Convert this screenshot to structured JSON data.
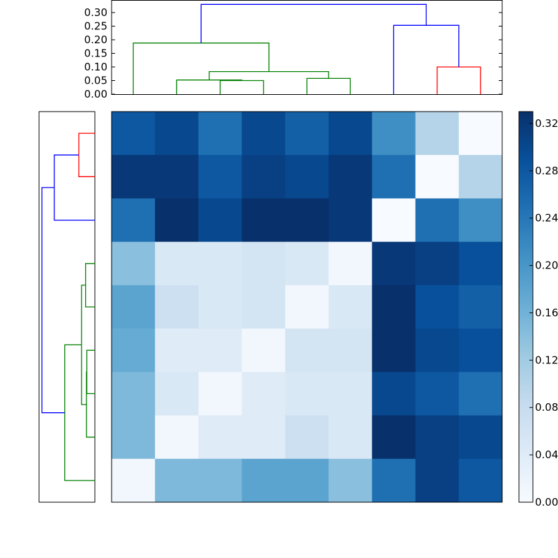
{
  "chart_data": [
    {
      "type": "dendrogram",
      "name": "top-dendrogram",
      "orientation": "top",
      "yticks": [
        "0.00",
        "0.05",
        "0.10",
        "0.15",
        "0.20",
        "0.25",
        "0.30"
      ],
      "ylim": [
        0,
        0.34
      ],
      "leaf_count": 9,
      "links": [
        {
          "color": "#008000",
          "x": [
            3,
            3,
            4,
            4
          ],
          "y": [
            0,
            0.05,
            0.05,
            0
          ]
        },
        {
          "color": "#008000",
          "x": [
            2,
            2,
            3.5,
            3.5
          ],
          "y": [
            0,
            0.052,
            0.052,
            0.05
          ]
        },
        {
          "color": "#008000",
          "x": [
            5,
            5,
            6,
            6
          ],
          "y": [
            0,
            0.058,
            0.058,
            0
          ]
        },
        {
          "color": "#008000",
          "x": [
            2.75,
            2.75,
            5.5,
            5.5
          ],
          "y": [
            0.052,
            0.083,
            0.083,
            0.058
          ]
        },
        {
          "color": "#008000",
          "x": [
            1,
            1,
            4.125,
            4.125
          ],
          "y": [
            0,
            0.188,
            0.188,
            0.083
          ]
        },
        {
          "color": "#ff0000",
          "x": [
            8,
            8,
            9,
            9
          ],
          "y": [
            0,
            0.1,
            0.1,
            0
          ]
        },
        {
          "color": "#0000ff",
          "x": [
            7,
            7,
            8.5,
            8.5
          ],
          "y": [
            0,
            0.253,
            0.253,
            0.1
          ]
        },
        {
          "color": "#0000ff",
          "x": [
            2.5625,
            2.5625,
            7.75,
            7.75
          ],
          "y": [
            0.188,
            0.33,
            0.33,
            0.253
          ]
        }
      ]
    },
    {
      "type": "dendrogram",
      "name": "left-dendrogram",
      "orientation": "left",
      "leaf_count": 9,
      "links": [
        {
          "color": "#ff0000",
          "y": [
            1,
            1,
            2,
            2
          ],
          "x": [
            0,
            0.1,
            0.1,
            0
          ]
        },
        {
          "color": "#0000ff",
          "y": [
            1.5,
            1.5,
            3,
            3
          ],
          "x": [
            0.1,
            0.253,
            0.253,
            0
          ]
        },
        {
          "color": "#008000",
          "y": [
            4,
            4,
            5,
            5
          ],
          "x": [
            0,
            0.058,
            0.058,
            0
          ]
        },
        {
          "color": "#008000",
          "y": [
            6,
            6,
            7,
            7
          ],
          "x": [
            0,
            0.05,
            0.05,
            0
          ]
        },
        {
          "color": "#008000",
          "y": [
            6.5,
            6.5,
            8,
            8
          ],
          "x": [
            0.05,
            0.052,
            0.052,
            0
          ]
        },
        {
          "color": "#008000",
          "y": [
            4.5,
            4.5,
            7.25,
            7.25
          ],
          "x": [
            0.058,
            0.083,
            0.083,
            0.052
          ]
        },
        {
          "color": "#008000",
          "y": [
            5.875,
            5.875,
            9,
            9
          ],
          "x": [
            0.083,
            0.188,
            0.188,
            0
          ]
        },
        {
          "color": "#0000ff",
          "y": [
            2.25,
            2.25,
            7.4375,
            7.4375
          ],
          "x": [
            0.253,
            0.33,
            0.33,
            0.188
          ]
        }
      ]
    },
    {
      "type": "heatmap",
      "name": "distance-matrix",
      "colormap": "Blues",
      "vmin": 0.0,
      "vmax": 0.33,
      "rows": 9,
      "cols": 9,
      "values": [
        [
          0.28,
          0.3,
          0.25,
          0.3,
          0.27,
          0.3,
          0.21,
          0.1,
          0.0
        ],
        [
          0.32,
          0.32,
          0.28,
          0.31,
          0.3,
          0.32,
          0.25,
          0.0,
          0.1
        ],
        [
          0.25,
          0.33,
          0.3,
          0.33,
          0.33,
          0.32,
          0.0,
          0.25,
          0.21
        ],
        [
          0.14,
          0.05,
          0.05,
          0.06,
          0.05,
          0.01,
          0.32,
          0.31,
          0.29
        ],
        [
          0.18,
          0.07,
          0.05,
          0.06,
          0.01,
          0.05,
          0.33,
          0.29,
          0.27
        ],
        [
          0.17,
          0.04,
          0.04,
          0.01,
          0.06,
          0.06,
          0.33,
          0.3,
          0.29
        ],
        [
          0.15,
          0.05,
          0.01,
          0.04,
          0.05,
          0.05,
          0.3,
          0.28,
          0.25
        ],
        [
          0.15,
          0.01,
          0.04,
          0.04,
          0.07,
          0.05,
          0.33,
          0.31,
          0.3
        ],
        [
          0.01,
          0.15,
          0.15,
          0.18,
          0.18,
          0.14,
          0.25,
          0.31,
          0.28
        ]
      ]
    },
    {
      "type": "colorbar",
      "name": "colorbar",
      "ticks": [
        "0.00",
        "0.04",
        "0.08",
        "0.12",
        "0.16",
        "0.20",
        "0.24",
        "0.28",
        "0.32"
      ],
      "range": [
        0.0,
        0.33
      ]
    }
  ],
  "axes": {
    "top_dendrogram_yticks": [
      "0.00",
      "0.05",
      "0.10",
      "0.15",
      "0.20",
      "0.25",
      "0.30"
    ],
    "colorbar_ticks": [
      "0.00",
      "0.04",
      "0.08",
      "0.12",
      "0.16",
      "0.20",
      "0.24",
      "0.28",
      "0.32"
    ]
  }
}
